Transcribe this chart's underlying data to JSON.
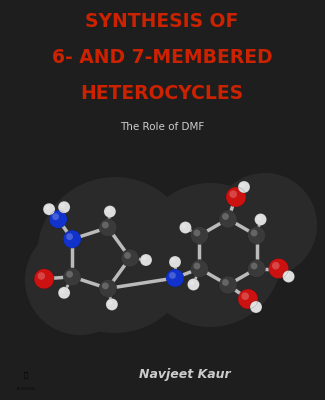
{
  "bg_color": "#1e1e1e",
  "title_lines": [
    "SYNTHESIS OF",
    "6- AND 7-MEMBERED",
    "HETEROCYCLES"
  ],
  "title_color": "#cc2200",
  "subtitle": "The Role of DMF",
  "subtitle_color": "#cccccc",
  "author": "Navjeet Kaur",
  "author_color": "#cccccc",
  "title_fontsize": 13.5,
  "subtitle_fontsize": 7.5,
  "author_fontsize": 9,
  "atom_carbon": "#3a3a3a",
  "atom_nitrogen": "#1133cc",
  "atom_oxygen": "#cc1111",
  "atom_hydrogen": "#dddddd",
  "bond_color": "#bbbbbb",
  "bg_blob_color": "#2a2a2a"
}
